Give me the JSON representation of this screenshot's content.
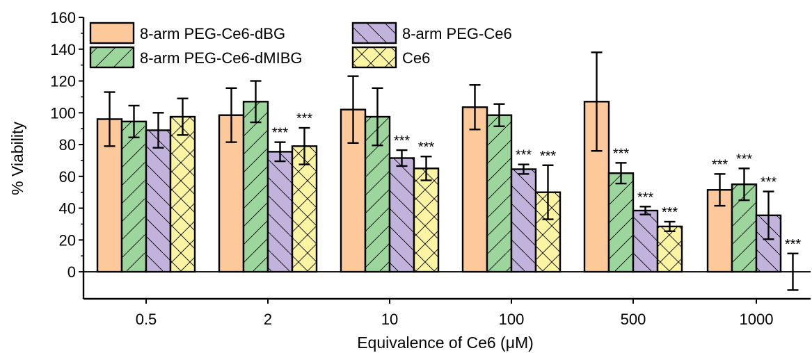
{
  "chart_data": {
    "type": "bar",
    "xlabel": "Equivalence of Ce6 (μM)",
    "ylabel": "% Viability",
    "ylim": [
      -17,
      160
    ],
    "yticks": [
      0,
      20,
      40,
      60,
      80,
      100,
      120,
      140,
      160
    ],
    "categories": [
      "0.5",
      "2",
      "10",
      "100",
      "500",
      "1000"
    ],
    "legend_position": "top-left",
    "grid": false,
    "significance_label": "***",
    "series": [
      {
        "name": "8-arm PEG-Ce6-dBG",
        "color": "#fdc89a",
        "pattern": "none",
        "values": [
          96,
          98.5,
          102,
          103.5,
          107,
          51.5
        ],
        "errors": [
          17,
          17,
          21,
          14,
          31,
          10
        ],
        "significant": [
          false,
          false,
          false,
          false,
          false,
          true
        ]
      },
      {
        "name": "8-arm PEG-Ce6-dMIBG",
        "color": "#9cd69c",
        "pattern": "diagonal-forward",
        "values": [
          94.5,
          107,
          97.5,
          98.5,
          62,
          55
        ],
        "errors": [
          10,
          13,
          18,
          7,
          6.5,
          10
        ],
        "significant": [
          false,
          false,
          false,
          false,
          true,
          true
        ]
      },
      {
        "name": "8-arm PEG-Ce6",
        "color": "#c1b3dc",
        "pattern": "diagonal-backward",
        "values": [
          89,
          75.5,
          71.5,
          64.5,
          38.5,
          35.5
        ],
        "errors": [
          11,
          6,
          5,
          3,
          2.5,
          15
        ],
        "significant": [
          false,
          true,
          true,
          true,
          true,
          true
        ]
      },
      {
        "name": "Ce6",
        "color": "#faf4a3",
        "pattern": "crosshatch",
        "values": [
          97.5,
          79,
          65,
          50,
          28.5,
          0
        ],
        "errors": [
          11.5,
          11.5,
          7.5,
          17,
          3,
          11.5
        ],
        "significant": [
          false,
          true,
          true,
          true,
          true,
          true
        ]
      }
    ]
  }
}
